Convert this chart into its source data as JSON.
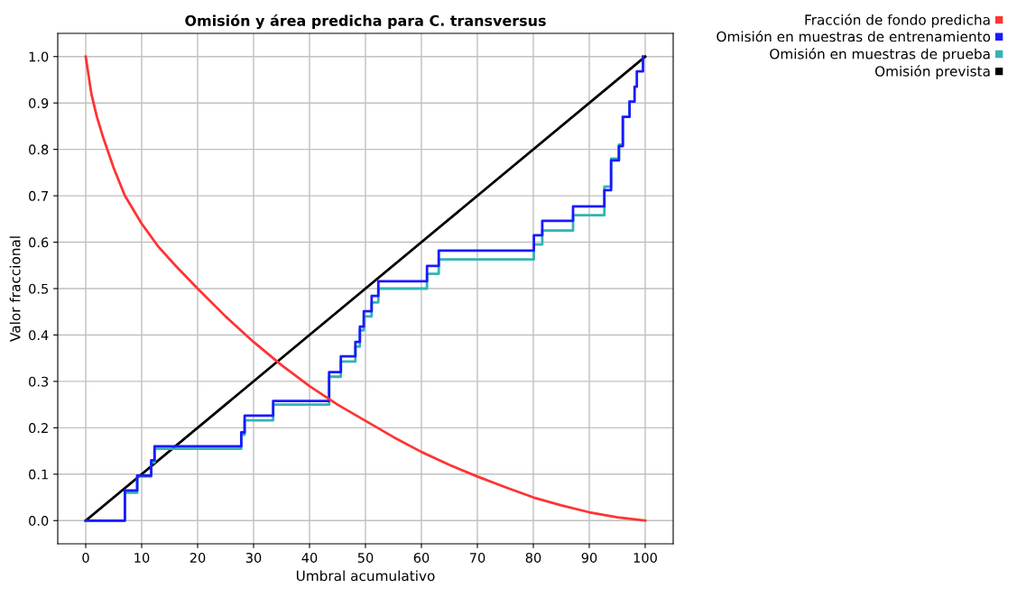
{
  "chart_data": {
    "type": "line",
    "title": "Omisión y área predicha para C. transversus",
    "xlabel": "Umbral acumulativo",
    "ylabel": "Valor fraccional",
    "xlim": [
      -5,
      105
    ],
    "ylim": [
      -0.05,
      1.05
    ],
    "xticks": [
      0,
      10,
      20,
      30,
      40,
      50,
      60,
      70,
      80,
      90,
      100
    ],
    "yticks": [
      {
        "value": 0,
        "label": "0.0"
      },
      {
        "value": 0.1,
        "label": "0.1"
      },
      {
        "value": 0.2,
        "label": "0.2"
      },
      {
        "value": 0.3,
        "label": "0.3"
      },
      {
        "value": 0.4,
        "label": "0.4"
      },
      {
        "value": 0.5,
        "label": "0.5"
      },
      {
        "value": 0.6,
        "label": "0.6"
      },
      {
        "value": 0.7,
        "label": "0.7"
      },
      {
        "value": 0.8,
        "label": "0.8"
      },
      {
        "value": 0.9,
        "label": "0.9"
      },
      {
        "value": 1,
        "label": "1.0"
      }
    ],
    "grid": true,
    "legend": "top right",
    "series": [
      {
        "name": "Fracción de fondo predicha",
        "color": "#ff3333",
        "x": [
          0,
          1,
          2,
          3,
          5,
          7,
          10,
          13,
          16,
          20,
          25,
          30,
          35,
          40,
          45,
          50,
          55,
          60,
          65,
          70,
          75,
          80,
          85,
          90,
          95,
          100
        ],
        "values": [
          1.0,
          0.92,
          0.87,
          0.83,
          0.76,
          0.7,
          0.64,
          0.59,
          0.55,
          0.5,
          0.44,
          0.385,
          0.335,
          0.29,
          0.25,
          0.215,
          0.18,
          0.148,
          0.12,
          0.095,
          0.072,
          0.05,
          0.033,
          0.018,
          0.007,
          0.0
        ]
      },
      {
        "name": "Omisión en muestras de entrenamiento",
        "color": "#1a1aff",
        "type": "step",
        "x": [
          0,
          7.0,
          9.2,
          11.7,
          12.3,
          27.8,
          28.4,
          33.5,
          43.5,
          45.6,
          48.2,
          49.0,
          49.7,
          51.1,
          52.3,
          61.0,
          63.1,
          80.1,
          81.6,
          87.1,
          92.7,
          93.9,
          95.3,
          96.0,
          97.2,
          98.1,
          98.5,
          99.6
        ],
        "values": [
          0,
          0.065,
          0.097,
          0.13,
          0.16,
          0.19,
          0.226,
          0.258,
          0.32,
          0.354,
          0.385,
          0.418,
          0.451,
          0.484,
          0.516,
          0.549,
          0.582,
          0.615,
          0.646,
          0.677,
          0.712,
          0.776,
          0.807,
          0.87,
          0.903,
          0.935,
          0.968,
          1.0
        ]
      },
      {
        "name": "Omisión en muestras de prueba",
        "color": "#33b3b3",
        "type": "step",
        "x": [
          0,
          7.0,
          9.2,
          11.7,
          12.3,
          27.8,
          28.4,
          33.5,
          43.5,
          45.6,
          48.2,
          49.0,
          49.7,
          51.1,
          52.3,
          61.0,
          63.1,
          80.1,
          81.6,
          87.1,
          92.7,
          93.9,
          95.3,
          96.0,
          97.2
        ],
        "values": [
          0,
          0.06,
          0.095,
          0.125,
          0.155,
          0.185,
          0.216,
          0.25,
          0.31,
          0.343,
          0.375,
          0.41,
          0.44,
          0.47,
          0.5,
          0.532,
          0.563,
          0.595,
          0.625,
          0.658,
          0.72,
          0.78,
          0.81,
          0.87,
          0.903
        ]
      },
      {
        "name": "Omisión prevista",
        "color": "#000000",
        "x": [
          0,
          100
        ],
        "values": [
          0,
          1
        ]
      }
    ]
  }
}
